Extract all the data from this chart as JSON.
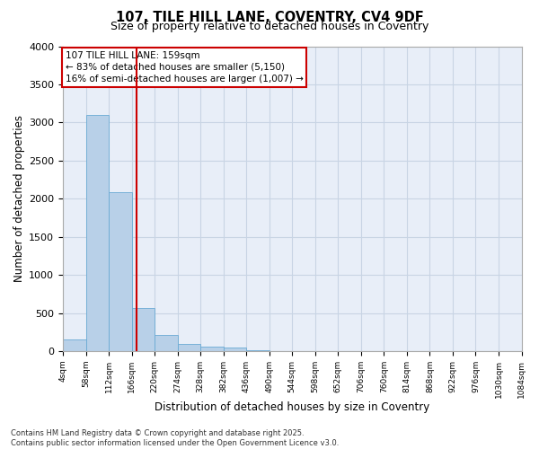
{
  "title_line1": "107, TILE HILL LANE, COVENTRY, CV4 9DF",
  "title_line2": "Size of property relative to detached houses in Coventry",
  "xlabel": "Distribution of detached houses by size in Coventry",
  "ylabel": "Number of detached properties",
  "bar_values": [
    150,
    3100,
    2090,
    560,
    210,
    90,
    55,
    50,
    15,
    5,
    2,
    1,
    1,
    1,
    1,
    1,
    1,
    1,
    1,
    1
  ],
  "bin_labels": [
    "4sqm",
    "58sqm",
    "112sqm",
    "166sqm",
    "220sqm",
    "274sqm",
    "328sqm",
    "382sqm",
    "436sqm",
    "490sqm",
    "544sqm",
    "598sqm",
    "652sqm",
    "706sqm",
    "760sqm",
    "814sqm",
    "868sqm",
    "922sqm",
    "976sqm",
    "1030sqm",
    "1084sqm"
  ],
  "bar_color": "#b8d0e8",
  "bar_edge_color": "#6aaad4",
  "vline_position": 2.72,
  "vline_color": "#cc0000",
  "annotation_text": "107 TILE HILL LANE: 159sqm\n← 83% of detached houses are smaller (5,150)\n16% of semi-detached houses are larger (1,007) →",
  "annotation_box_color": "#cc0000",
  "ylim": [
    0,
    4000
  ],
  "yticks": [
    0,
    500,
    1000,
    1500,
    2000,
    2500,
    3000,
    3500,
    4000
  ],
  "grid_color": "#c8d4e4",
  "bg_color": "#e8eef8",
  "footer_line1": "Contains HM Land Registry data © Crown copyright and database right 2025.",
  "footer_line2": "Contains public sector information licensed under the Open Government Licence v3.0.",
  "title_fontsize": 10.5,
  "subtitle_fontsize": 9,
  "annotation_fontsize": 7.5,
  "ylabel_text": "Number of detached properties"
}
